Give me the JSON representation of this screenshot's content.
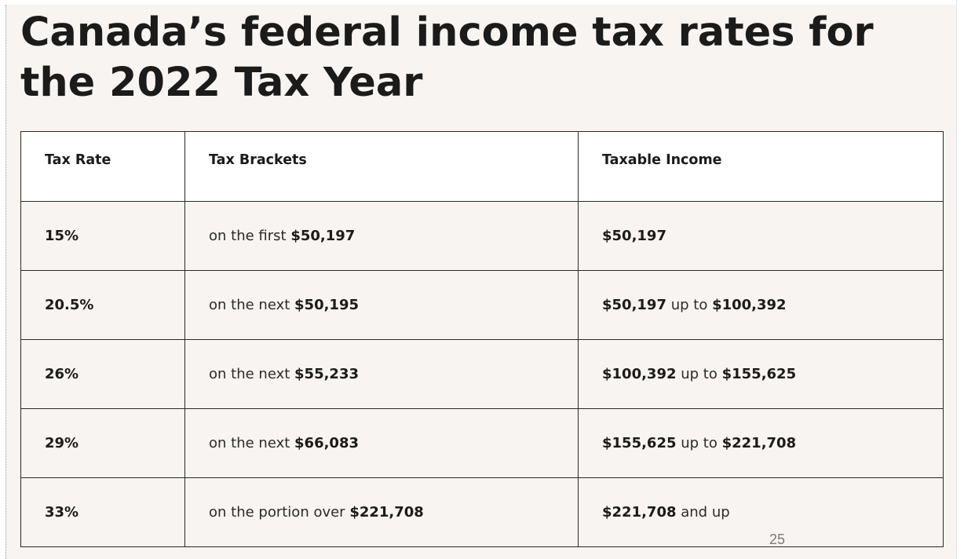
{
  "title": "Canada’s federal income tax rates for the 2022 Tax Year",
  "table": {
    "headers": {
      "rate": "Tax Rate",
      "bracket": "Tax Brackets",
      "income": "Taxable Income"
    },
    "rows": [
      {
        "rate": "15%",
        "bracket_prefix": "on the first ",
        "bracket_amount": "$50,197",
        "income_low": "$50,197",
        "income_join": "",
        "income_high": ""
      },
      {
        "rate": "20.5%",
        "bracket_prefix": "on the next ",
        "bracket_amount": "$50,195",
        "income_low": "$50,197",
        "income_join": " up to ",
        "income_high": "$100,392"
      },
      {
        "rate": "26%",
        "bracket_prefix": "on the next ",
        "bracket_amount": "$55,233",
        "income_low": "$100,392",
        "income_join": " up to ",
        "income_high": "$155,625"
      },
      {
        "rate": "29%",
        "bracket_prefix": "on the next ",
        "bracket_amount": "$66,083",
        "income_low": "$155,625",
        "income_join": " up to ",
        "income_high": "$221,708"
      },
      {
        "rate": "33%",
        "bracket_prefix": "on the portion over ",
        "bracket_amount": "$221,708",
        "income_low": "$221,708",
        "income_join": " and up",
        "income_high": ""
      }
    ]
  },
  "page_number": "25"
}
